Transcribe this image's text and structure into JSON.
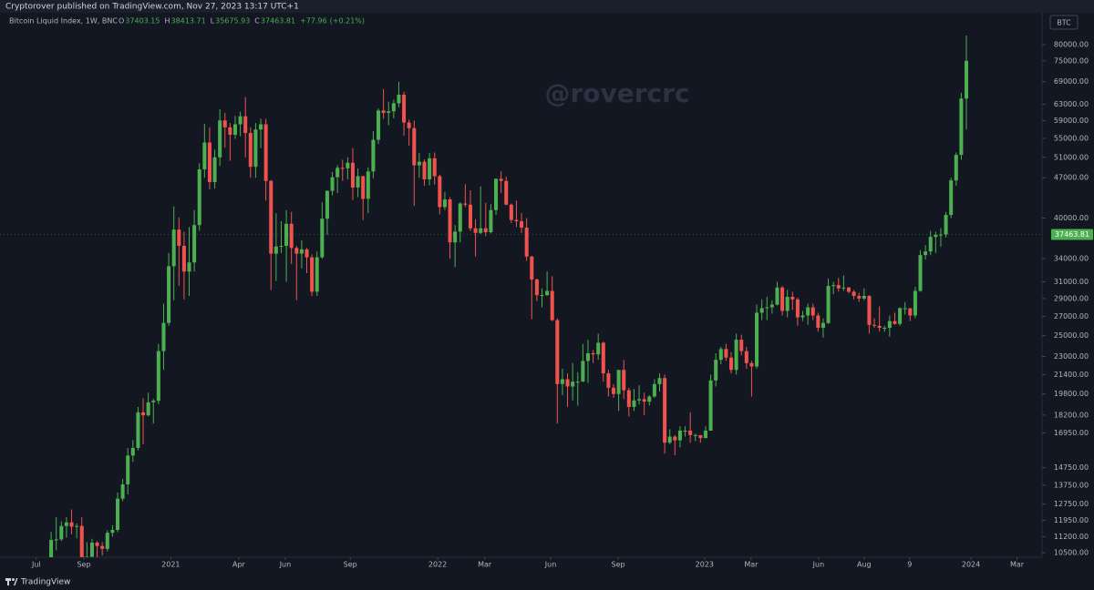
{
  "header": {
    "publisher": "Cryptorover published on TradingView.com, Nov 27, 2023 13:17 UTC+1"
  },
  "legend": {
    "symbol": "Bitcoin Liquid Index, 1W, BNC",
    "ohlc": [
      {
        "label": "O",
        "value": 37403.15
      },
      {
        "label": "H",
        "value": 38413.71
      },
      {
        "label": "L",
        "value": 35675.93
      },
      {
        "label": "C",
        "value": 37463.81
      }
    ],
    "change": {
      "value": 77.96,
      "label": "+77.96"
    },
    "change_pct": {
      "value": 0.21,
      "label": "(+0.21%)"
    }
  },
  "currency": "BTC",
  "watermark": "@rovercrc",
  "footer": {
    "brand": "TradingView"
  },
  "chart_data": {
    "type": "candlestick",
    "log_scale": true,
    "grid": false,
    "up_color": "#4caf50",
    "down_color": "#f0534e",
    "last_price": 37463.81,
    "xlim": [
      -10,
      193.8
    ],
    "ylim": [
      10310,
      90900
    ],
    "xticks": [
      {
        "value": -2.9,
        "label": "Jul"
      },
      {
        "value": 6.4,
        "label": "Sep"
      },
      {
        "value": 23.4,
        "label": "2021"
      },
      {
        "value": 36.7,
        "label": "Apr"
      },
      {
        "value": 45.8,
        "label": "Jun"
      },
      {
        "value": 58.5,
        "label": "Sep"
      },
      {
        "value": 75.6,
        "label": "2022"
      },
      {
        "value": 84.8,
        "label": "Mar"
      },
      {
        "value": 97.7,
        "label": "Jun"
      },
      {
        "value": 110.9,
        "label": "Sep"
      },
      {
        "value": 127.8,
        "label": "2023"
      },
      {
        "value": 136.9,
        "label": "Mar"
      },
      {
        "value": 150.1,
        "label": "Jun"
      },
      {
        "value": 159,
        "label": "Aug"
      },
      {
        "value": 167.9,
        "label": "9"
      },
      {
        "value": 179.9,
        "label": "2024"
      },
      {
        "value": 188.9,
        "label": "Mar"
      }
    ],
    "yticks": [
      {
        "value": 80000,
        "label": "80000.00"
      },
      {
        "value": 75000,
        "label": "75000.00"
      },
      {
        "value": 69000,
        "label": "69000.00"
      },
      {
        "value": 63000,
        "label": "63000.00"
      },
      {
        "value": 59000,
        "label": "59000.00"
      },
      {
        "value": 55000,
        "label": "55000.00"
      },
      {
        "value": 51000,
        "label": "51000.00"
      },
      {
        "value": 47000,
        "label": "47000.00"
      },
      {
        "value": 40000,
        "label": "40000.00"
      },
      {
        "value": 34000,
        "label": "34000.00"
      },
      {
        "value": 31000,
        "label": "31000.00"
      },
      {
        "value": 29000,
        "label": "29000.00"
      },
      {
        "value": 27000,
        "label": "27000.00"
      },
      {
        "value": 25000,
        "label": "25000.00"
      },
      {
        "value": 23000,
        "label": "23000.00"
      },
      {
        "value": 21400,
        "label": "21400.00"
      },
      {
        "value": 19800,
        "label": "19800.00"
      },
      {
        "value": 18200,
        "label": "18200.00"
      },
      {
        "value": 16950,
        "label": "16950.00"
      },
      {
        "value": 14750,
        "label": "14750.00"
      },
      {
        "value": 13750,
        "label": "13750.00"
      },
      {
        "value": 12750,
        "label": "12750.00"
      },
      {
        "value": 11950,
        "label": "11950.00"
      },
      {
        "value": 11200,
        "label": "11200.00"
      },
      {
        "value": 10500,
        "label": "10500.00"
      }
    ],
    "candles": [
      [
        9380,
        11400,
        9300,
        11050
      ],
      [
        11050,
        12100,
        10600,
        11070
      ],
      [
        11070,
        11900,
        11000,
        11680
      ],
      [
        11680,
        12100,
        11150,
        11850
      ],
      [
        11850,
        12480,
        11300,
        11650
      ],
      [
        11650,
        11800,
        11120,
        11680
      ],
      [
        11680,
        12090,
        9900,
        10250
      ],
      [
        10250,
        10950,
        9900,
        10330
      ],
      [
        10330,
        11100,
        10200,
        10930
      ],
      [
        10930,
        10990,
        10130,
        10780
      ],
      [
        10780,
        10950,
        10380,
        10660
      ],
      [
        10660,
        11480,
        10550,
        11370
      ],
      [
        11370,
        11720,
        11200,
        11500
      ],
      [
        11500,
        13350,
        11400,
        13030
      ],
      [
        13030,
        14100,
        12900,
        13800
      ],
      [
        13800,
        15950,
        13250,
        15480
      ],
      [
        15480,
        16480,
        15100,
        15960
      ],
      [
        15960,
        18800,
        15800,
        18400
      ],
      [
        18400,
        19480,
        16200,
        18180
      ],
      [
        18180,
        19900,
        18100,
        19150
      ],
      [
        19150,
        19420,
        17600,
        19270
      ],
      [
        19270,
        24200,
        19000,
        23500
      ],
      [
        23500,
        28400,
        21800,
        26300
      ],
      [
        26300,
        34800,
        26000,
        33000
      ],
      [
        33000,
        41900,
        28800,
        38200
      ],
      [
        38200,
        40100,
        30500,
        35800
      ],
      [
        35800,
        37900,
        28900,
        32300
      ],
      [
        32300,
        38600,
        29300,
        33500
      ],
      [
        33500,
        41300,
        32300,
        38900
      ],
      [
        38900,
        49800,
        38000,
        48600
      ],
      [
        48600,
        58300,
        47000,
        54100
      ],
      [
        54100,
        57500,
        44900,
        46200
      ],
      [
        46200,
        52600,
        45000,
        51000
      ],
      [
        51000,
        61800,
        49300,
        59100
      ],
      [
        59100,
        60900,
        53000,
        57500
      ],
      [
        57500,
        58500,
        50300,
        55800
      ],
      [
        55800,
        60200,
        54900,
        58200
      ],
      [
        58200,
        61200,
        55500,
        60100
      ],
      [
        60100,
        64900,
        51000,
        56200
      ],
      [
        56200,
        57500,
        47000,
        49100
      ],
      [
        49100,
        58500,
        47000,
        57000
      ],
      [
        57000,
        59500,
        52900,
        58200
      ],
      [
        58200,
        59500,
        42900,
        46400
      ],
      [
        46400,
        46600,
        30000,
        34700
      ],
      [
        34700,
        40800,
        31100,
        35700
      ],
      [
        35700,
        39500,
        34800,
        35800
      ],
      [
        35800,
        41300,
        31000,
        39100
      ],
      [
        39100,
        41000,
        33300,
        35500
      ],
      [
        35500,
        35800,
        28800,
        34700
      ],
      [
        34700,
        36600,
        32700,
        35300
      ],
      [
        35300,
        35500,
        32100,
        34200
      ],
      [
        34200,
        34600,
        29300,
        29800
      ],
      [
        29800,
        35000,
        29300,
        34200
      ],
      [
        34200,
        42600,
        34000,
        39900
      ],
      [
        39900,
        44700,
        37400,
        44600
      ],
      [
        44600,
        48100,
        43800,
        47100
      ],
      [
        47100,
        49400,
        44200,
        48900
      ],
      [
        48900,
        50500,
        46400,
        48800
      ],
      [
        48800,
        51000,
        46700,
        49900
      ],
      [
        49900,
        52900,
        43000,
        45200
      ],
      [
        45200,
        48800,
        43500,
        47300
      ],
      [
        47300,
        47400,
        39700,
        43200
      ],
      [
        43200,
        49000,
        40800,
        48200
      ],
      [
        48200,
        56600,
        46900,
        54700
      ],
      [
        54700,
        62000,
        53800,
        61500
      ],
      [
        61500,
        67000,
        59500,
        60900
      ],
      [
        60900,
        63700,
        58000,
        61300
      ],
      [
        61300,
        64200,
        59600,
        63300
      ],
      [
        63300,
        69000,
        62300,
        65500
      ],
      [
        65500,
        66300,
        55600,
        58600
      ],
      [
        58600,
        59300,
        53400,
        57300
      ],
      [
        57300,
        59100,
        42000,
        49400
      ],
      [
        49400,
        51900,
        47000,
        50100
      ],
      [
        50100,
        50600,
        45500,
        46700
      ],
      [
        46700,
        51900,
        45600,
        50800
      ],
      [
        50800,
        52000,
        45700,
        47300
      ],
      [
        47300,
        47600,
        40600,
        41800
      ],
      [
        41800,
        44400,
        41300,
        43100
      ],
      [
        43100,
        43500,
        34000,
        36300
      ],
      [
        36300,
        38900,
        32900,
        37900
      ],
      [
        37900,
        42600,
        36300,
        42400
      ],
      [
        42400,
        45800,
        41800,
        42200
      ],
      [
        42200,
        44700,
        38000,
        38400
      ],
      [
        38400,
        39800,
        34300,
        37700
      ],
      [
        37700,
        45400,
        37500,
        38400
      ],
      [
        38400,
        42500,
        37200,
        37800
      ],
      [
        37800,
        42300,
        37600,
        41300
      ],
      [
        41300,
        46900,
        40500,
        46800
      ],
      [
        46800,
        48200,
        44200,
        46400
      ],
      [
        46400,
        47200,
        42100,
        42200
      ],
      [
        42200,
        42400,
        39200,
        39700
      ],
      [
        39700,
        42900,
        38600,
        39500
      ],
      [
        39500,
        40800,
        37700,
        38500
      ],
      [
        38500,
        40000,
        33700,
        34300
      ],
      [
        34300,
        34400,
        26700,
        31300
      ],
      [
        31300,
        31400,
        28700,
        29400
      ],
      [
        29400,
        30200,
        28000,
        29400
      ],
      [
        29400,
        32300,
        29300,
        29900
      ],
      [
        29900,
        31700,
        26500,
        26600
      ],
      [
        26600,
        26800,
        17600,
        20600
      ],
      [
        20600,
        21900,
        19700,
        21000
      ],
      [
        21000,
        21500,
        18800,
        20400
      ],
      [
        20400,
        22400,
        19300,
        20800
      ],
      [
        20800,
        21600,
        18900,
        20800
      ],
      [
        20800,
        24200,
        20800,
        22600
      ],
      [
        22600,
        24600,
        20700,
        23300
      ],
      [
        23300,
        23600,
        22400,
        23200
      ],
      [
        23200,
        25200,
        22700,
        24300
      ],
      [
        24300,
        24400,
        20800,
        21500
      ],
      [
        21500,
        21800,
        19600,
        20300
      ],
      [
        20300,
        20600,
        19500,
        19800
      ],
      [
        19800,
        21800,
        18500,
        21800
      ],
      [
        21800,
        22700,
        19400,
        20100
      ],
      [
        20100,
        20300,
        18100,
        18800
      ],
      [
        18800,
        20200,
        18500,
        19300
      ],
      [
        19300,
        20500,
        19000,
        19400
      ],
      [
        19400,
        19900,
        18200,
        19200
      ],
      [
        19200,
        19700,
        18900,
        19600
      ],
      [
        19600,
        21000,
        19500,
        20600
      ],
      [
        20600,
        21500,
        20000,
        21100
      ],
      [
        21100,
        21400,
        15600,
        16300
      ],
      [
        16300,
        17200,
        16200,
        16700
      ],
      [
        16700,
        16800,
        15500,
        16450
      ],
      [
        16450,
        17400,
        16000,
        17100
      ],
      [
        17100,
        17400,
        16700,
        17100
      ],
      [
        17100,
        18400,
        16300,
        16800
      ],
      [
        16800,
        16900,
        16400,
        16800
      ],
      [
        16800,
        16800,
        16300,
        16600
      ],
      [
        16600,
        17400,
        16600,
        17100
      ],
      [
        17100,
        21400,
        17100,
        20900
      ],
      [
        20900,
        23300,
        20400,
        22700
      ],
      [
        22700,
        23900,
        22300,
        23700
      ],
      [
        23700,
        24200,
        22600,
        22900
      ],
      [
        22900,
        23400,
        21500,
        21800
      ],
      [
        21800,
        25200,
        21400,
        24600
      ],
      [
        24600,
        25100,
        23100,
        23500
      ],
      [
        23500,
        23900,
        21900,
        22400
      ],
      [
        22400,
        22600,
        19600,
        22100
      ],
      [
        22100,
        28300,
        21900,
        27400
      ],
      [
        27400,
        28900,
        26600,
        27900
      ],
      [
        27900,
        29200,
        26600,
        28000
      ],
      [
        28000,
        28800,
        27300,
        28300
      ],
      [
        28300,
        31000,
        28200,
        30300
      ],
      [
        30300,
        30500,
        27100,
        27600
      ],
      [
        27600,
        30000,
        26900,
        29200
      ],
      [
        29200,
        29800,
        27700,
        28900
      ],
      [
        28900,
        29100,
        26000,
        26900
      ],
      [
        26900,
        27600,
        26500,
        27100
      ],
      [
        27100,
        28400,
        26100,
        28000
      ],
      [
        28000,
        28400,
        26600,
        27100
      ],
      [
        27100,
        27400,
        25400,
        25800
      ],
      [
        25800,
        26800,
        24800,
        26300
      ],
      [
        26300,
        31400,
        26200,
        30500
      ],
      [
        30500,
        31000,
        29500,
        30600
      ],
      [
        30600,
        31500,
        29800,
        30200
      ],
      [
        30200,
        31800,
        29900,
        30300
      ],
      [
        30300,
        30400,
        29600,
        29800
      ],
      [
        29800,
        30000,
        28900,
        29300
      ],
      [
        29300,
        29700,
        28600,
        29000
      ],
      [
        29000,
        30200,
        28800,
        29300
      ],
      [
        29300,
        29400,
        25200,
        26100
      ],
      [
        26100,
        26800,
        25800,
        26000
      ],
      [
        26000,
        28100,
        25400,
        25800
      ],
      [
        25800,
        26000,
        25400,
        25800
      ],
      [
        25800,
        27100,
        24900,
        26500
      ],
      [
        26500,
        27400,
        26100,
        26200
      ],
      [
        26200,
        28000,
        26000,
        27900
      ],
      [
        27900,
        28600,
        27200,
        27900
      ],
      [
        27900,
        27900,
        26500,
        27100
      ],
      [
        27100,
        30400,
        26800,
        29900
      ],
      [
        29900,
        35200,
        29800,
        34500
      ],
      [
        34500,
        35900,
        33900,
        35000
      ],
      [
        35000,
        38000,
        34500,
        37100
      ],
      [
        37100,
        37900,
        34800,
        37400
      ],
      [
        37403.15,
        38413.71,
        35675.93,
        37463.81
      ],
      [
        37463.81,
        41000,
        37000,
        40500
      ],
      [
        40500,
        47000,
        40000,
        46500
      ],
      [
        46500,
        52000,
        45500,
        51500
      ],
      [
        51500,
        66000,
        50500,
        64500
      ],
      [
        64500,
        83000,
        57000,
        75000
      ]
    ]
  }
}
